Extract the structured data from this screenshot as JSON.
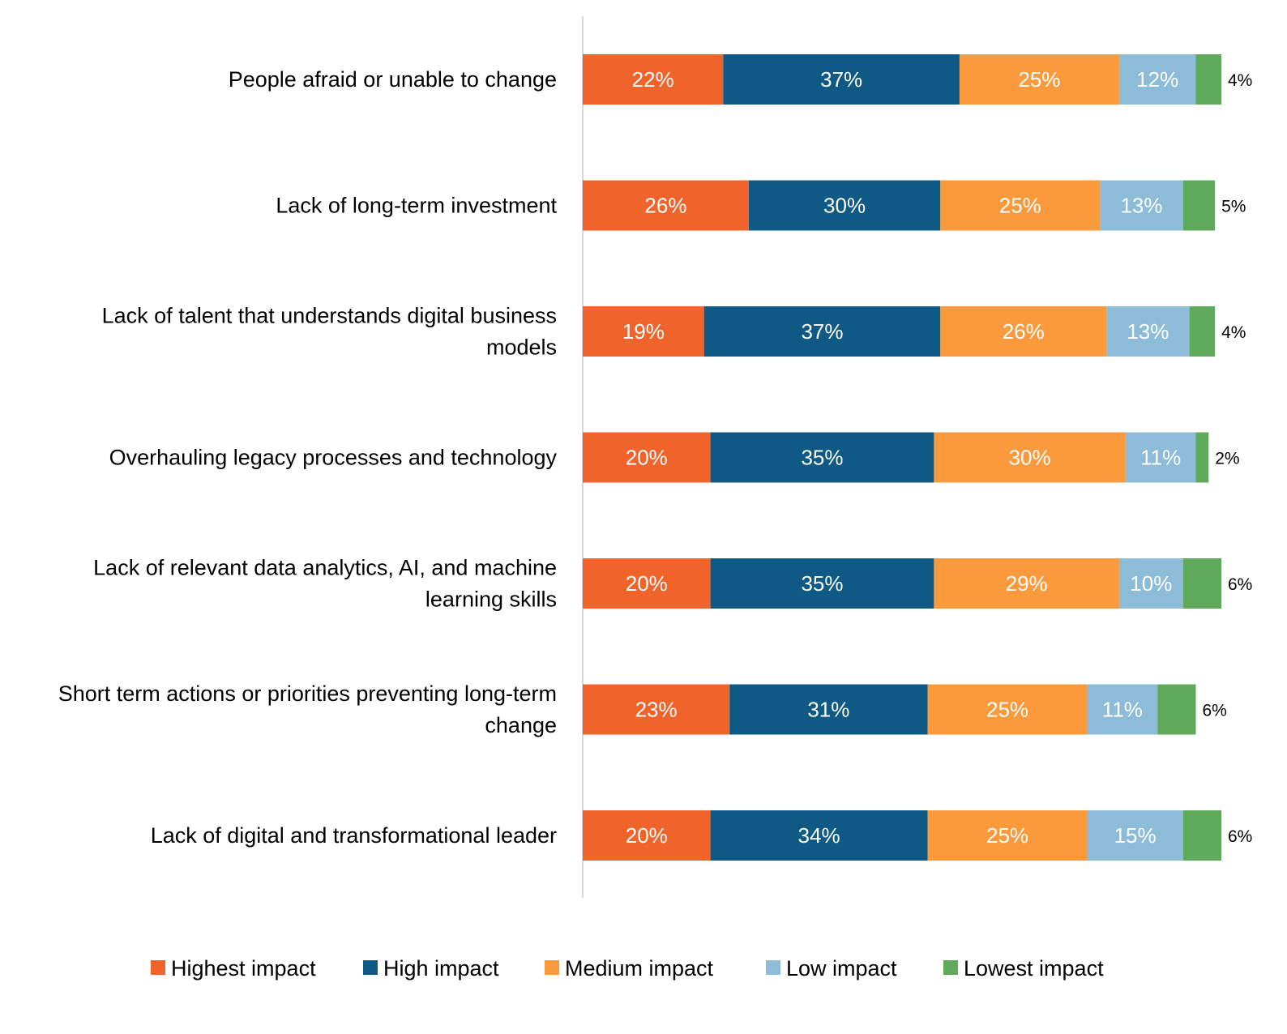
{
  "chart_data": {
    "type": "bar",
    "orientation": "horizontal",
    "stacked": true,
    "title": "",
    "xlabel": "",
    "ylabel": "",
    "unit": "%",
    "categories": [
      [
        "People afraid or unable to change"
      ],
      [
        "Lack of long-term investment"
      ],
      [
        "Lack of talent that understands digital business",
        "models"
      ],
      [
        "Overhauling legacy processes and technology"
      ],
      [
        "Lack of relevant data analytics, AI, and machine",
        "learning skills"
      ],
      [
        "Short term actions or priorities preventing long-term",
        "change"
      ],
      [
        "Lack of digital and transformational leader"
      ]
    ],
    "series": [
      {
        "name": "Highest impact",
        "color": "#F0642C",
        "values": [
          22,
          26,
          19,
          20,
          20,
          23,
          20
        ]
      },
      {
        "name": "High impact",
        "color": "#0F5A84",
        "values": [
          37,
          30,
          37,
          35,
          35,
          31,
          34
        ]
      },
      {
        "name": "Medium impact",
        "color": "#FA9A3C",
        "values": [
          25,
          25,
          26,
          30,
          29,
          25,
          25
        ]
      },
      {
        "name": "Low impact",
        "color": "#8DBCD9",
        "values": [
          12,
          13,
          13,
          11,
          10,
          11,
          15
        ]
      },
      {
        "name": "Lowest impact",
        "color": "#5FAA5A",
        "values": [
          4,
          5,
          4,
          2,
          6,
          6,
          6
        ]
      }
    ],
    "xlim": [
      0,
      100
    ],
    "grid": false,
    "legend_position": "bottom",
    "outside_label_series": "Lowest impact"
  }
}
